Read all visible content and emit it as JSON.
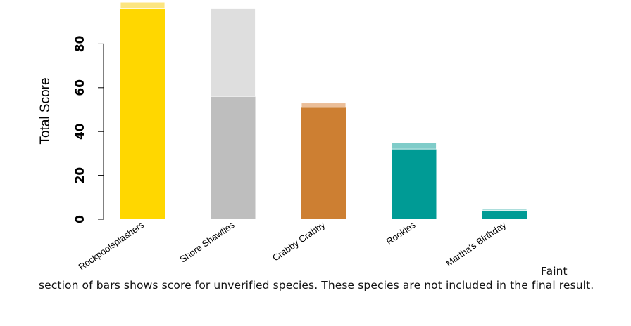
{
  "chart_data": {
    "type": "bar",
    "stacked": true,
    "categories": [
      "Rockpoolsplashers",
      "Shore Shawties",
      "Crabby Crabby",
      "Rookies",
      "Martha's Birthday"
    ],
    "series": [
      {
        "values": [
          96,
          56,
          51,
          32,
          4
        ]
      },
      {
        "values": [
          3,
          40,
          2,
          3,
          0.5
        ]
      }
    ],
    "colors": {
      "verified": [
        "#FFD700",
        "#BEBEBE",
        "#CD7F32",
        "#009B95",
        "#009B95"
      ],
      "unverified": [
        "#FCE580",
        "#DEDEDE",
        "#EBBE98",
        "#7FCCC9",
        "#7FCCC9"
      ]
    },
    "ylabel": "Total Score",
    "yticks": [
      "0",
      "20",
      "40",
      "60",
      "80"
    ],
    "ytick_values": [
      0,
      20,
      40,
      60,
      80
    ],
    "ylim": [
      0,
      99
    ],
    "grid": false,
    "legend": "none"
  },
  "caption": "Faint section of bars shows score for unverified species. These species are not included in the final result."
}
